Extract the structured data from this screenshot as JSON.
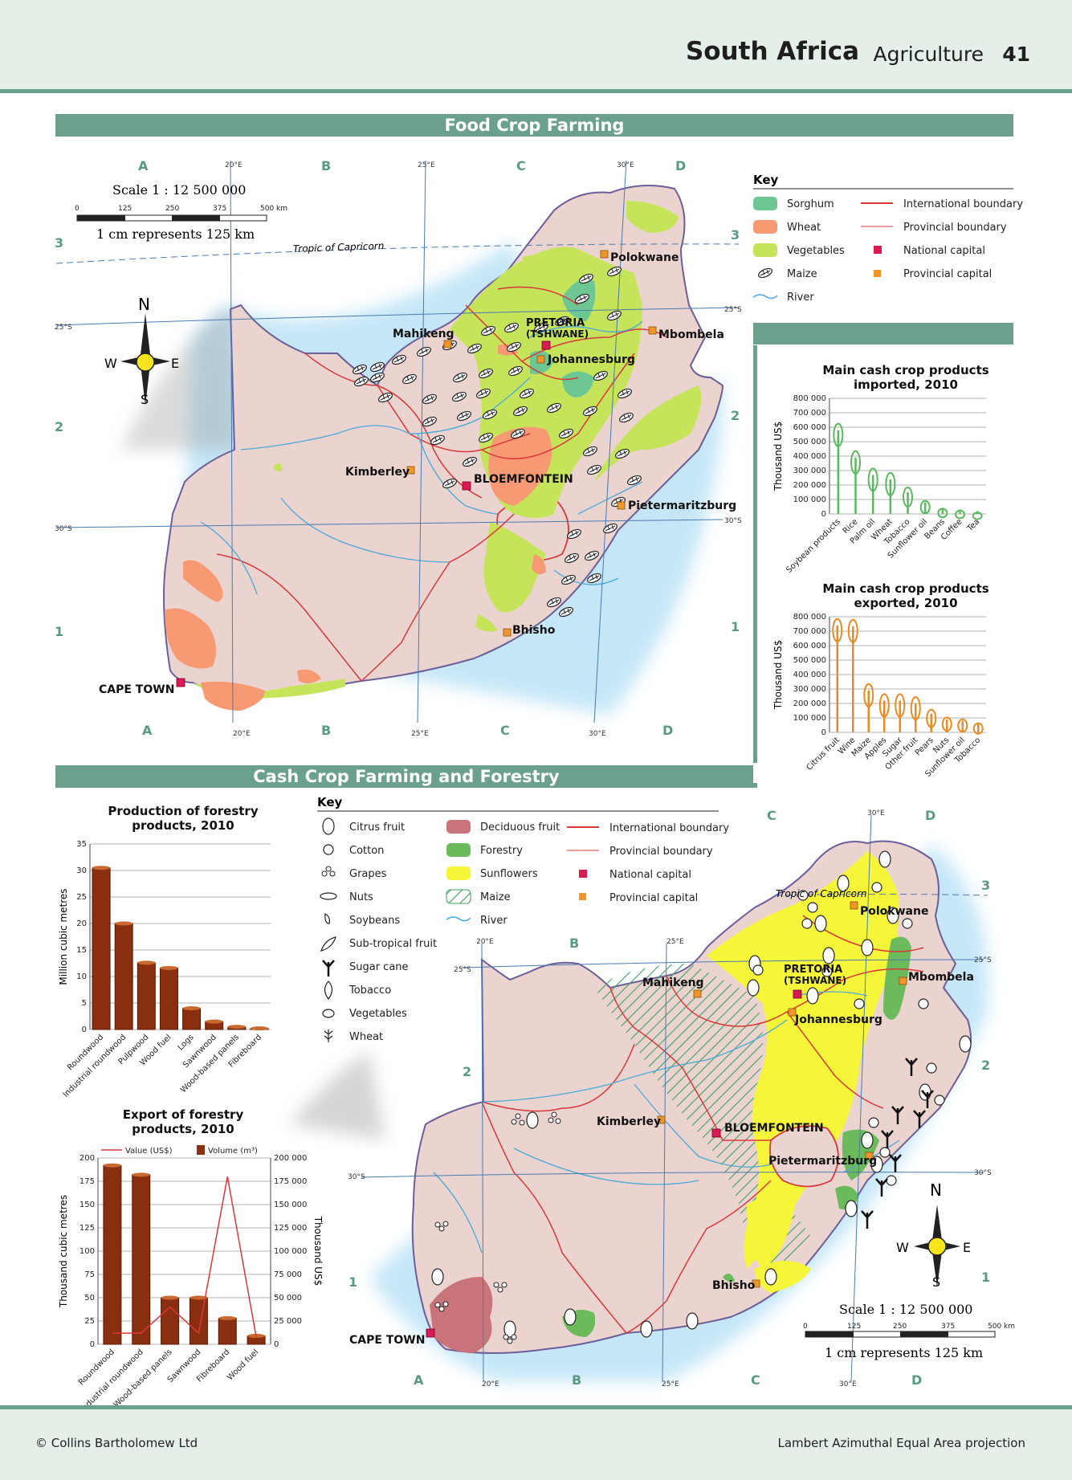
{
  "header": {
    "country": "South Africa",
    "topic": "Agriculture",
    "page_number": "41"
  },
  "footer": {
    "copyright": "© Collins Bartholomew Ltd",
    "projection": "Lambert Azimuthal Equal Area projection"
  },
  "food_map": {
    "title": "Food Crop Farming",
    "scale_title": "Scale 1 : 12 500 000",
    "scale_ticks": [
      "0",
      "125",
      "250",
      "375",
      "500 km"
    ],
    "scale_note": "1 cm represents 125 km",
    "tropic_label": "Tropic of Capricorn",
    "compass": {
      "n": "N",
      "s": "S",
      "e": "E",
      "w": "W"
    },
    "grid_cols_top": [
      "A",
      "B",
      "C",
      "D"
    ],
    "grid_cols_bottom": [
      "A",
      "B",
      "C",
      "D"
    ],
    "grid_rows": [
      "3",
      "2",
      "1"
    ],
    "lon_labels": [
      "20°E",
      "25°E",
      "30°E"
    ],
    "lat_labels": [
      "25°S",
      "30°S"
    ],
    "cities": {
      "polokwane": "Polokwane",
      "pretoria": "PRETORIA",
      "tshwane": "(TSHWANE)",
      "mahikeng": "Mahikeng",
      "mbombela": "Mbombela",
      "johannesburg": "Johannesburg",
      "kimberley": "Kimberley",
      "bloemfontein": "BLOEMFONTEIN",
      "pietermaritzburg": "Pietermaritzburg",
      "bhisho": "Bhisho",
      "cape_town": "CAPE TOWN"
    },
    "key": {
      "title": "Key",
      "sorghum": "Sorghum",
      "wheat": "Wheat",
      "vegetables": "Vegetables",
      "maize": "Maize",
      "river": "River",
      "intl_boundary": "International boundary",
      "prov_boundary": "Provincial boundary",
      "national_capital": "National capital",
      "provincial_capital": "Provincial capital"
    },
    "colors": {
      "sorghum": "#6cc793",
      "wheat": "#f79a73",
      "vegetables": "#c6e45a",
      "land": "#ebd4cf",
      "sea": "#bfe4f7"
    }
  },
  "cash_map": {
    "title": "Cash Crop Farming and Forestry",
    "scale_title": "Scale 1 : 12 500 000",
    "scale_ticks": [
      "0",
      "125",
      "250",
      "375",
      "500 km"
    ],
    "scale_note": "1 cm represents 125 km",
    "tropic_label": "Tropic of Capricorn",
    "compass": {
      "n": "N",
      "s": "S",
      "e": "E",
      "w": "W"
    },
    "grid_cols_top": [
      "B",
      "C",
      "D"
    ],
    "grid_cols_bottom": [
      "A",
      "B",
      "C",
      "D"
    ],
    "grid_rows": [
      "3",
      "2",
      "1"
    ],
    "lon_labels": [
      "20°E",
      "25°E",
      "30°E"
    ],
    "lat_labels": [
      "25°S",
      "30°S"
    ],
    "cities": {
      "polokwane": "Polokwane",
      "pretoria": "PRETORIA",
      "tshwane": "(TSHWANE)",
      "mahikeng": "Mahikeng",
      "mbombela": "Mbombela",
      "johannesburg": "Johannesburg",
      "kimberley": "Kimberley",
      "bloemfontein": "BLOEMFONTEIN",
      "pietermaritzburg": "Pietermaritzburg",
      "bhisho": "Bhisho",
      "cape_town": "CAPE TOWN"
    },
    "key": {
      "title": "Key",
      "citrus": "Citrus fruit",
      "cotton": "Cotton",
      "grapes": "Grapes",
      "nuts": "Nuts",
      "soybeans": "Soybeans",
      "subtropical": "Sub-tropical fruit",
      "sugarcane": "Sugar cane",
      "tobacco": "Tobacco",
      "vegetables": "Vegetables",
      "wheat": "Wheat",
      "deciduous": "Deciduous fruit",
      "forestry": "Forestry",
      "sunflowers": "Sunflowers",
      "maize": "Maize",
      "river": "River",
      "intl_boundary": "International boundary",
      "prov_boundary": "Provincial boundary",
      "national_capital": "National capital",
      "provincial_capital": "Provincial capital"
    },
    "colors": {
      "deciduous": "#c9737a",
      "forestry": "#6bbb5c",
      "sunflowers": "#f5f53a",
      "maize": "#4aa86a"
    }
  },
  "chart_data": [
    {
      "type": "bar",
      "title": "Main cash crop products imported, 2010",
      "title_lines": [
        "Main cash crop products",
        "imported, 2010"
      ],
      "categories": [
        "Soybean products",
        "Rice",
        "Palm oil",
        "Wheat",
        "Tobacco",
        "Sunflower oil",
        "Beans",
        "Coffee",
        "Tea"
      ],
      "values": [
        580000,
        390000,
        270000,
        240000,
        150000,
        80000,
        40000,
        30000,
        20000
      ],
      "ylabel": "Thousand US$",
      "ylim": [
        0,
        800000
      ],
      "yticks": [
        "0",
        "100 000",
        "200 000",
        "300 000",
        "400 000",
        "500 000",
        "600 000",
        "700 000",
        "800 000"
      ],
      "color": "#5ab85e"
    },
    {
      "type": "bar",
      "title": "Main cash crop products exported, 2010",
      "title_lines": [
        "Main cash crop products",
        "exported, 2010"
      ],
      "categories": [
        "Citrus fruit",
        "Wine",
        "Maize",
        "Apples",
        "Sugar",
        "Other fruit",
        "Pears",
        "Nuts",
        "Sunflower oil",
        "Tobacco"
      ],
      "values": [
        740000,
        735000,
        290000,
        220000,
        220000,
        200000,
        130000,
        90000,
        80000,
        60000
      ],
      "ylabel": "Thousand US$",
      "ylim": [
        0,
        800000
      ],
      "yticks": [
        "0",
        "100 000",
        "200 000",
        "300 000",
        "400 000",
        "500 000",
        "600 000",
        "700 000",
        "800 000"
      ],
      "color": "#e98a23"
    },
    {
      "type": "bar",
      "title": "Production of forestry products, 2010",
      "title_lines": [
        "Production of forestry",
        "products, 2010"
      ],
      "categories": [
        "Roundwood",
        "Industrial roundwood",
        "Pulpwood",
        "Wood fuel",
        "Logs",
        "Sawnwood",
        "Wood-based panels",
        "Fibreboard"
      ],
      "values": [
        30.5,
        20,
        12.6,
        11.6,
        4,
        1.5,
        0.5,
        0.2
      ],
      "ylabel": "Million cubic metres",
      "ylim": [
        0,
        35
      ],
      "yticks": [
        "0",
        "5",
        "10",
        "15",
        "20",
        "25",
        "30",
        "35"
      ],
      "color": "#8a2e10"
    },
    {
      "type": "bar",
      "title": "Export of forestry products, 2010",
      "title_lines": [
        "Export of forestry",
        "products, 2010"
      ],
      "categories": [
        "Roundwood",
        "Industrial roundwood",
        "Wood-based panels",
        "Sawnwood",
        "Fibreboard",
        "Wood fuel"
      ],
      "series": [
        {
          "name": "Volume (m³)",
          "values": [
            192,
            182,
            50,
            50,
            28,
            9
          ],
          "axis": "left"
        },
        {
          "name": "Value (US$)",
          "values": [
            12000,
            12000,
            40000,
            12000,
            180000,
            8000
          ],
          "axis": "right"
        }
      ],
      "legend": [
        "Value (US$)",
        "Volume (m³)"
      ],
      "ylabel": "Thousand cubic metres",
      "ylabel_right": "Thousand US$",
      "ylim": [
        0,
        200
      ],
      "ylim_right": [
        0,
        200000
      ],
      "yticks": [
        "0",
        "25",
        "50",
        "75",
        "100",
        "125",
        "150",
        "175",
        "200"
      ],
      "yticks_right": [
        "0",
        "25 000",
        "50 000",
        "75 000",
        "100 000",
        "125 000",
        "150 000",
        "175 000",
        "200 000"
      ],
      "color": "#8a2e10",
      "line_color": "#d9383a"
    }
  ]
}
